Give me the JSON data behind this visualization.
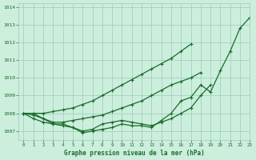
{
  "title": "Graphe pression niveau de la mer (hPa)",
  "bg_color": "#cceedd",
  "grid_color": "#99ccbb",
  "line_color": "#1a6b2a",
  "xlim": [
    -0.5,
    23
  ],
  "ylim": [
    1006.5,
    1014.2
  ],
  "yticks": [
    1007,
    1008,
    1009,
    1010,
    1011,
    1012,
    1013,
    1014
  ],
  "xticks": [
    0,
    1,
    2,
    3,
    4,
    5,
    6,
    7,
    8,
    9,
    10,
    11,
    12,
    13,
    14,
    15,
    16,
    17,
    18,
    19,
    20,
    21,
    22,
    23
  ],
  "series": [
    [
      1008.0,
      1008.0,
      1007.7,
      1007.4,
      1007.4,
      1007.2,
      1006.9,
      1007.0,
      1007.1,
      1007.2,
      1007.4,
      1007.3,
      1007.3,
      1007.2,
      1007.6,
      1008.0,
      1008.7,
      1008.9,
      1009.6,
      1009.2,
      1010.4,
      1011.5,
      1012.8,
      1013.4
    ],
    [
      1008.0,
      1007.7,
      1007.5,
      1007.4,
      1007.3,
      1007.2,
      1007.0,
      1007.1,
      1007.4,
      1007.5,
      1007.6,
      1007.5,
      1007.4,
      1007.3,
      1007.5,
      1007.7,
      1008.0,
      1008.3,
      1009.0,
      1009.6,
      null,
      null,
      null,
      null
    ],
    [
      1008.0,
      1007.9,
      1007.7,
      1007.5,
      1007.5,
      1007.6,
      1007.7,
      1007.8,
      1007.9,
      1008.1,
      1008.3,
      1008.5,
      1008.7,
      1009.0,
      1009.3,
      1009.6,
      1009.8,
      1010.0,
      1010.3,
      null,
      null,
      null,
      null,
      null
    ],
    [
      1008.0,
      1008.0,
      1008.0,
      1008.1,
      1008.2,
      1008.3,
      1008.5,
      1008.7,
      1009.0,
      1009.3,
      1009.6,
      1009.9,
      1010.2,
      1010.5,
      1010.8,
      1011.1,
      1011.5,
      1011.9,
      null,
      null,
      null,
      null,
      null,
      null
    ]
  ]
}
